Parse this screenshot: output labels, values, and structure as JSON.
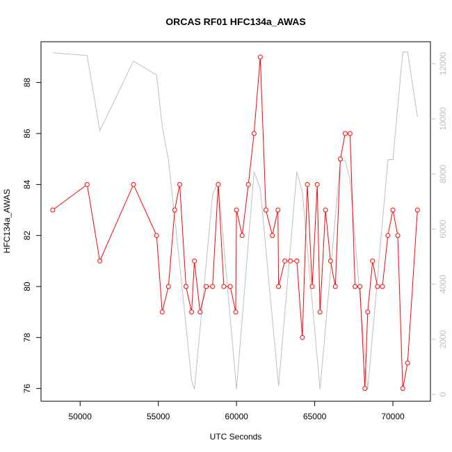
{
  "chart_data": {
    "type": "line",
    "title": "ORCAS RF01 HFC134a_AWAS",
    "xlabel": "UTC Seconds",
    "ylabel": "HFC134a_AWAS",
    "xlim": [
      47500,
      72400
    ],
    "ylim": [
      75.5,
      89.6
    ],
    "y2lim": [
      -250,
      12800
    ],
    "x_ticks": [
      50000,
      55000,
      60000,
      65000,
      70000
    ],
    "y_ticks": [
      76,
      78,
      80,
      82,
      84,
      86,
      88
    ],
    "y2_ticks": [
      0,
      2000,
      4000,
      6000,
      8000,
      10000,
      12000
    ],
    "grid": false,
    "colors": {
      "primary": "#ff0000",
      "secondary": "#bebebe"
    },
    "series": [
      {
        "axis": "left",
        "style": "line+open-circles",
        "x": [
          48250,
          50450,
          51260,
          53410,
          54890,
          55250,
          55650,
          56050,
          56370,
          56770,
          57130,
          57310,
          57670,
          58070,
          58470,
          58830,
          59190,
          59600,
          59950,
          60000,
          60360,
          60760,
          61120,
          61520,
          61880,
          62290,
          62650,
          62690,
          63090,
          63450,
          63860,
          64210,
          64530,
          64840,
          65160,
          65340,
          65690,
          66010,
          66320,
          66640,
          66950,
          67260,
          67580,
          67890,
          68210,
          68390,
          68700,
          69010,
          69330,
          69680,
          70000,
          70310,
          70630,
          70940,
          71570
        ],
        "y": [
          83,
          84,
          81,
          84,
          82,
          79,
          80,
          83,
          84,
          80,
          79,
          81,
          79,
          80,
          80,
          84,
          80,
          80,
          79,
          83,
          82,
          84,
          86,
          89,
          83,
          82,
          83,
          80,
          81,
          81,
          81,
          78,
          84,
          80,
          84,
          79,
          83,
          81,
          80,
          85,
          86,
          86,
          80,
          80,
          76,
          79,
          81,
          80,
          80,
          82,
          83,
          82,
          76,
          77,
          83
        ]
      },
      {
        "axis": "right",
        "style": "line",
        "x": [
          48250,
          50450,
          51260,
          53410,
          54890,
          55250,
          55650,
          56370,
          57130,
          57310,
          58470,
          58830,
          60000,
          61120,
          61520,
          62690,
          63860,
          64210,
          65340,
          66640,
          66950,
          67260,
          68390,
          69680,
          70000,
          70630,
          70940,
          71570
        ],
        "y": [
          12400,
          12300,
          9570,
          12100,
          11590,
          9740,
          8490,
          4700,
          500,
          180,
          7240,
          7720,
          180,
          8080,
          7470,
          300,
          8080,
          7340,
          180,
          8490,
          8490,
          7770,
          180,
          8520,
          8520,
          12430,
          12430,
          10080
        ]
      }
    ]
  }
}
